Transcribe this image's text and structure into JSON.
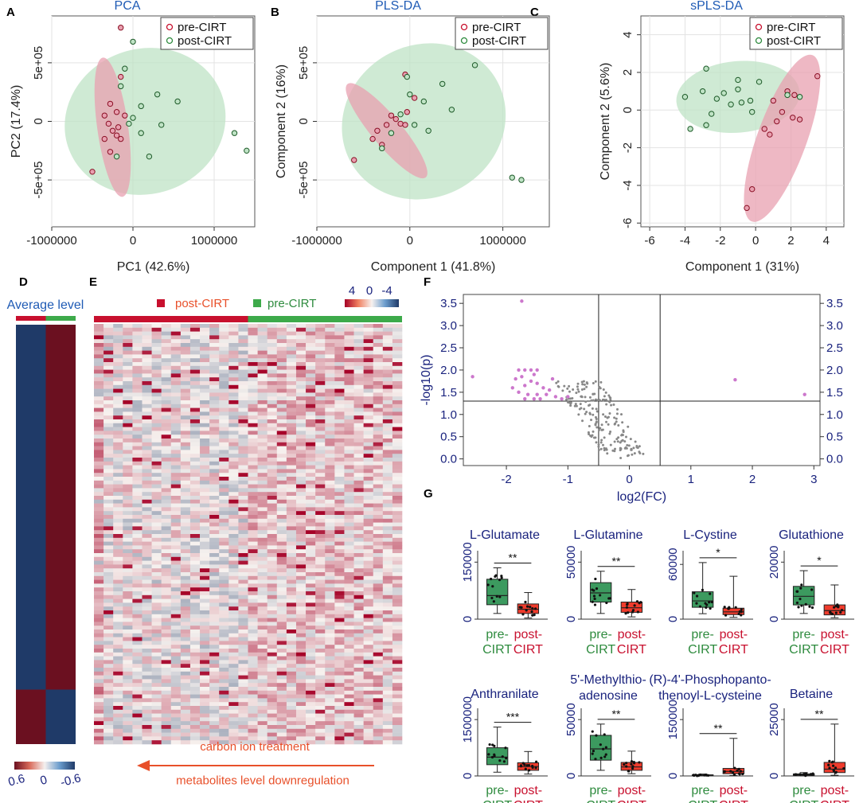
{
  "colors": {
    "pre": "#c8102e",
    "post": "#2e8b3e",
    "pre_fill": "#e8a0b0",
    "post_fill": "#bfe3c5",
    "axis_blue": "#1a237e",
    "title_blue": "#1f5bb5",
    "orange": "#e8502a",
    "heat_high": "#6b1020",
    "heat_low": "#1f3a68",
    "volcano_sig": "#cc77cc",
    "volcano_ns": "#888888"
  },
  "panel_letters": [
    "A",
    "B",
    "C",
    "D",
    "E",
    "F",
    "G"
  ],
  "chart_data": [
    {
      "id": "A",
      "type": "scatter",
      "title": "PCA",
      "xlabel": "PC1 (42.6%)",
      "ylabel": "PC2 (17.4%)",
      "xlim": [
        -1000000,
        1500000
      ],
      "ylim": [
        -900000,
        900000
      ],
      "xticks": [
        -1000000,
        0,
        1000000
      ],
      "xtick_labels": [
        "-1000000",
        "0",
        "1000000"
      ],
      "yticks": [
        -500000,
        0,
        500000
      ],
      "ytick_labels": [
        "-5e+05",
        "0",
        "5e+05"
      ],
      "legend": [
        "pre-CIRT",
        "post-CIRT"
      ],
      "ellipses": [
        {
          "group": "post",
          "cx": 150000,
          "cy": 0,
          "rx": 1000000,
          "ry": 620000,
          "angle": -18
        },
        {
          "group": "pre",
          "cx": -250000,
          "cy": -50000,
          "rx": 190000,
          "ry": 600000,
          "angle": -8
        }
      ],
      "series": [
        {
          "name": "pre-CIRT",
          "group": "pre",
          "points": [
            [
              -150000,
              800000
            ],
            [
              -150000,
              380000
            ],
            [
              -280000,
              150000
            ],
            [
              -200000,
              80000
            ],
            [
              -350000,
              50000
            ],
            [
              -300000,
              -20000
            ],
            [
              -250000,
              -80000
            ],
            [
              -200000,
              -120000
            ],
            [
              -350000,
              -150000
            ],
            [
              -150000,
              -150000
            ],
            [
              -280000,
              -260000
            ],
            [
              -500000,
              -430000
            ],
            [
              -100000,
              50000
            ],
            [
              -180000,
              -50000
            ]
          ]
        },
        {
          "name": "post-CIRT",
          "group": "post",
          "points": [
            [
              0,
              680000
            ],
            [
              -100000,
              450000
            ],
            [
              -150000,
              300000
            ],
            [
              300000,
              230000
            ],
            [
              550000,
              170000
            ],
            [
              100000,
              130000
            ],
            [
              0,
              30000
            ],
            [
              -50000,
              -20000
            ],
            [
              100000,
              -100000
            ],
            [
              350000,
              -30000
            ],
            [
              200000,
              -300000
            ],
            [
              1250000,
              -100000
            ],
            [
              1400000,
              -250000
            ],
            [
              -200000,
              -300000
            ]
          ]
        }
      ]
    },
    {
      "id": "B",
      "type": "scatter",
      "title": "PLS-DA",
      "xlabel": "Component 1 (41.8%)",
      "ylabel": "Component 2 (16%)",
      "xlim": [
        -1000000,
        1500000
      ],
      "ylim": [
        -900000,
        900000
      ],
      "xticks": [
        -1000000,
        0,
        1000000
      ],
      "xtick_labels": [
        "-1000000",
        "0",
        "1000000"
      ],
      "yticks": [
        -500000,
        0,
        500000
      ],
      "ytick_labels": [
        "-5e+05",
        "0",
        "5e+05"
      ],
      "legend": [
        "pre-CIRT",
        "post-CIRT"
      ],
      "ellipses": [
        {
          "group": "post",
          "cx": 150000,
          "cy": 0,
          "rx": 900000,
          "ry": 650000,
          "angle": -30
        },
        {
          "group": "pre",
          "cx": -250000,
          "cy": -80000,
          "rx": 160000,
          "ry": 520000,
          "angle": -40
        }
      ],
      "series": [
        {
          "name": "pre-CIRT",
          "group": "pre",
          "points": [
            [
              -50000,
              400000
            ],
            [
              50000,
              200000
            ],
            [
              -30000,
              80000
            ],
            [
              -150000,
              20000
            ],
            [
              -250000,
              -30000
            ],
            [
              -350000,
              -80000
            ],
            [
              -400000,
              -150000
            ],
            [
              -300000,
              -200000
            ],
            [
              -600000,
              -330000
            ],
            [
              -100000,
              -20000
            ],
            [
              -200000,
              50000
            ],
            [
              -50000,
              -30000
            ]
          ]
        },
        {
          "name": "post-CIRT",
          "group": "post",
          "points": [
            [
              -30000,
              380000
            ],
            [
              700000,
              480000
            ],
            [
              350000,
              320000
            ],
            [
              0,
              230000
            ],
            [
              150000,
              170000
            ],
            [
              450000,
              100000
            ],
            [
              -100000,
              60000
            ],
            [
              50000,
              -30000
            ],
            [
              200000,
              -80000
            ],
            [
              -300000,
              -230000
            ],
            [
              1100000,
              -480000
            ],
            [
              1200000,
              -500000
            ],
            [
              -200000,
              -100000
            ]
          ]
        }
      ]
    },
    {
      "id": "C",
      "type": "scatter",
      "title": "sPLS-DA",
      "xlabel": "Component 1 (31%)",
      "ylabel": "Component 2 (5.6%)",
      "xlim": [
        -6.5,
        5
      ],
      "ylim": [
        -6.2,
        5
      ],
      "xticks": [
        -6,
        -4,
        -2,
        0,
        2,
        4
      ],
      "xtick_labels": [
        "-6",
        "-4",
        "-2",
        "0",
        "2",
        "4"
      ],
      "yticks": [
        -6,
        -4,
        -2,
        0,
        2,
        4
      ],
      "ytick_labels": [
        "-6",
        "-4",
        "-2",
        "0",
        "2",
        "4"
      ],
      "legend": [
        "pre-CIRT",
        "post-CIRT"
      ],
      "ellipses": [
        {
          "group": "post",
          "cx": -1,
          "cy": 0.7,
          "rx": 3.5,
          "ry": 1.9,
          "angle": -5
        },
        {
          "group": "pre",
          "cx": 1.5,
          "cy": -1.5,
          "rx": 1.4,
          "ry": 4.7,
          "angle": 20
        }
      ],
      "series": [
        {
          "name": "pre-CIRT",
          "group": "pre",
          "points": [
            [
              3.5,
              1.8
            ],
            [
              1.8,
              1
            ],
            [
              2.2,
              0.8
            ],
            [
              1,
              0.5
            ],
            [
              1.5,
              -0.1
            ],
            [
              2.5,
              -0.5
            ],
            [
              1.2,
              -0.6
            ],
            [
              0.5,
              -1
            ],
            [
              0.8,
              -1.3
            ],
            [
              -0.2,
              -4.2
            ],
            [
              -0.5,
              -5.2
            ],
            [
              2.1,
              -0.4
            ]
          ]
        },
        {
          "name": "post-CIRT",
          "group": "post",
          "points": [
            [
              -2.8,
              2.2
            ],
            [
              -1,
              1.6
            ],
            [
              -1,
              1.1
            ],
            [
              0.2,
              1.5
            ],
            [
              -3,
              1
            ],
            [
              -1.8,
              0.9
            ],
            [
              -4,
              0.7
            ],
            [
              -2.2,
              0.6
            ],
            [
              -1.4,
              0.3
            ],
            [
              -0.8,
              0.4
            ],
            [
              -0.3,
              0.5
            ],
            [
              -2.5,
              -0.2
            ],
            [
              -3.7,
              -1
            ],
            [
              -2.8,
              -0.8
            ],
            [
              1.8,
              0.8
            ],
            [
              2.5,
              0.7
            ],
            [
              -0.2,
              -0.1
            ]
          ]
        }
      ]
    },
    {
      "id": "D",
      "type": "heatmap",
      "title": "Average level",
      "columns": [
        "post-CIRT",
        "pre-CIRT"
      ],
      "row_blocks": [
        {
          "fraction": 0.87,
          "values": [
            -0.6,
            0.6
          ]
        },
        {
          "fraction": 0.13,
          "values": [
            0.6,
            -0.6
          ]
        }
      ],
      "colorbar": {
        "ticks": [
          "0.6",
          "0",
          "-0.6"
        ],
        "range": [
          0.6,
          -0.6
        ]
      }
    },
    {
      "id": "E",
      "type": "heatmap",
      "legend": [
        "post-CIRT",
        "pre-CIRT"
      ],
      "groups": [
        {
          "name": "post-CIRT",
          "count": 16
        },
        {
          "name": "pre-CIRT",
          "count": 16
        }
      ],
      "rows": 110,
      "colorbar": {
        "ticks": [
          "4",
          "0",
          "-4"
        ],
        "range": [
          4,
          -4
        ]
      }
    },
    {
      "id": "F",
      "type": "scatter",
      "xlabel": "log2(FC)",
      "ylabel": "-log10(p)",
      "xlim": [
        -2.7,
        3.1
      ],
      "ylim": [
        -0.15,
        3.7
      ],
      "xticks": [
        -2,
        -1,
        0,
        1,
        2,
        3
      ],
      "xtick_labels": [
        "-2",
        "-1",
        "0",
        "1",
        "2",
        "3"
      ],
      "yticks": [
        0,
        0.5,
        1,
        1.5,
        2,
        2.5,
        3,
        3.5
      ],
      "ytick_labels": [
        "0.0",
        "0.5",
        "1.0",
        "1.5",
        "2.0",
        "2.5",
        "3.0",
        "3.5"
      ],
      "thresholds": {
        "fc": [
          -0.5,
          0.5
        ],
        "p": 1.3
      },
      "significant": [
        [
          -1.75,
          3.55
        ],
        [
          -2.55,
          1.85
        ],
        [
          -1.8,
          2.0
        ],
        [
          -1.7,
          2.0
        ],
        [
          -1.6,
          2.0
        ],
        [
          -1.5,
          2.0
        ],
        [
          -1.55,
          1.9
        ],
        [
          -1.85,
          1.8
        ],
        [
          -1.75,
          1.85
        ],
        [
          -1.6,
          1.75
        ],
        [
          -1.7,
          1.65
        ],
        [
          -1.9,
          1.6
        ],
        [
          -1.5,
          1.7
        ],
        [
          -1.4,
          1.6
        ],
        [
          -1.3,
          1.55
        ],
        [
          -1.8,
          1.5
        ],
        [
          -1.65,
          1.45
        ],
        [
          -1.5,
          1.45
        ],
        [
          -1.35,
          1.45
        ],
        [
          -1.2,
          1.4
        ],
        [
          -1.55,
          1.35
        ],
        [
          -1.45,
          1.35
        ],
        [
          -1.1,
          1.35
        ],
        [
          -1.7,
          1.35
        ],
        [
          -1.0,
          1.4
        ],
        [
          1.72,
          1.78
        ],
        [
          2.85,
          1.45
        ],
        [
          -1.25,
          1.8
        ]
      ]
    },
    {
      "id": "G",
      "type": "boxplot",
      "ylabel": "",
      "categories": [
        "pre-\nCIRT",
        "post-\nCIRT"
      ],
      "category_lines": [
        [
          "pre-",
          "CIRT"
        ],
        [
          "post-",
          "CIRT"
        ]
      ],
      "panels": [
        {
          "title": [
            "L-Glutamate"
          ],
          "ymax": 180000,
          "yticks": [
            0,
            150000
          ],
          "ytick_labels": [
            "0",
            "150000"
          ],
          "sig": "**",
          "boxes": [
            {
              "group": "pre",
              "min": 15000,
              "q1": 38000,
              "median": 62000,
              "q3": 105000,
              "max": 135000
            },
            {
              "group": "post",
              "min": 3000,
              "q1": 15000,
              "median": 26000,
              "q3": 40000,
              "max": 70000
            }
          ]
        },
        {
          "title": [
            "L-Glutamine"
          ],
          "ymax": 60000,
          "yticks": [
            0,
            50000
          ],
          "ytick_labels": [
            "0",
            "50000"
          ],
          "sig": "**",
          "boxes": [
            {
              "group": "pre",
              "min": 5000,
              "q1": 15000,
              "median": 23000,
              "q3": 32000,
              "max": 42000
            },
            {
              "group": "post",
              "min": 2000,
              "q1": 6000,
              "median": 10000,
              "q3": 15000,
              "max": 26000
            }
          ]
        },
        {
          "title": [
            "L-Cystine"
          ],
          "ymax": 75000,
          "yticks": [
            0,
            60000
          ],
          "ytick_labels": [
            "0",
            "60000"
          ],
          "sig": "*",
          "boxes": [
            {
              "group": "pre",
              "min": 6000,
              "q1": 13000,
              "median": 20000,
              "q3": 30000,
              "max": 62000
            },
            {
              "group": "post",
              "min": 2000,
              "q1": 5000,
              "median": 8000,
              "q3": 12000,
              "max": 47000
            }
          ]
        },
        {
          "title": [
            "Glutathione"
          ],
          "ymax": 24000,
          "yticks": [
            0,
            20000
          ],
          "ytick_labels": [
            "0",
            "20000"
          ],
          "sig": "*",
          "boxes": [
            {
              "group": "pre",
              "min": 2000,
              "q1": 5000,
              "median": 8000,
              "q3": 11500,
              "max": 17000
            },
            {
              "group": "post",
              "min": 500,
              "q1": 1500,
              "median": 3000,
              "q3": 5000,
              "max": 12000
            }
          ]
        },
        {
          "title": [
            "Anthranilate"
          ],
          "ymax": 1800000,
          "yticks": [
            0,
            1500000
          ],
          "ytick_labels": [
            "0",
            "1500000"
          ],
          "sig": "***",
          "boxes": [
            {
              "group": "pre",
              "min": 100000,
              "q1": 300000,
              "median": 500000,
              "q3": 750000,
              "max": 1300000
            },
            {
              "group": "post",
              "min": 50000,
              "q1": 150000,
              "median": 250000,
              "q3": 350000,
              "max": 650000
            }
          ]
        },
        {
          "title": [
            "5'-Methylthio-",
            "adenosine"
          ],
          "ymax": 60000,
          "yticks": [
            0,
            50000
          ],
          "ytick_labels": [
            "0",
            "50000"
          ],
          "sig": "**",
          "boxes": [
            {
              "group": "pre",
              "min": 5000,
              "q1": 14000,
              "median": 24000,
              "q3": 36000,
              "max": 46000
            },
            {
              "group": "post",
              "min": 2000,
              "q1": 5000,
              "median": 8000,
              "q3": 12000,
              "max": 22000
            }
          ]
        },
        {
          "title": [
            "(R)-4'-Phosphopanto-",
            "thenoyl-L-cysteine"
          ],
          "ymax": 180000,
          "yticks": [
            0,
            150000
          ],
          "ytick_labels": [
            "0",
            "150000"
          ],
          "sig": "**",
          "boxes": [
            {
              "group": "pre",
              "min": 0,
              "q1": 500,
              "median": 1500,
              "q3": 3000,
              "max": 5000
            },
            {
              "group": "post",
              "min": 1000,
              "q1": 6000,
              "median": 12000,
              "q3": 20000,
              "max": 100000
            }
          ]
        },
        {
          "title": [
            "Betaine"
          ],
          "ymax": 30000,
          "yticks": [
            0,
            25000
          ],
          "ytick_labels": [
            "0",
            "25000"
          ],
          "sig": "**",
          "boxes": [
            {
              "group": "pre",
              "min": 0,
              "q1": 200,
              "median": 500,
              "q3": 900,
              "max": 1500
            },
            {
              "group": "post",
              "min": 300,
              "q1": 1500,
              "median": 3000,
              "q3": 6000,
              "max": 23000
            }
          ]
        }
      ]
    }
  ],
  "annotation": {
    "line1": "carbon ion treatment",
    "line2": "metabolites level downregulation"
  }
}
